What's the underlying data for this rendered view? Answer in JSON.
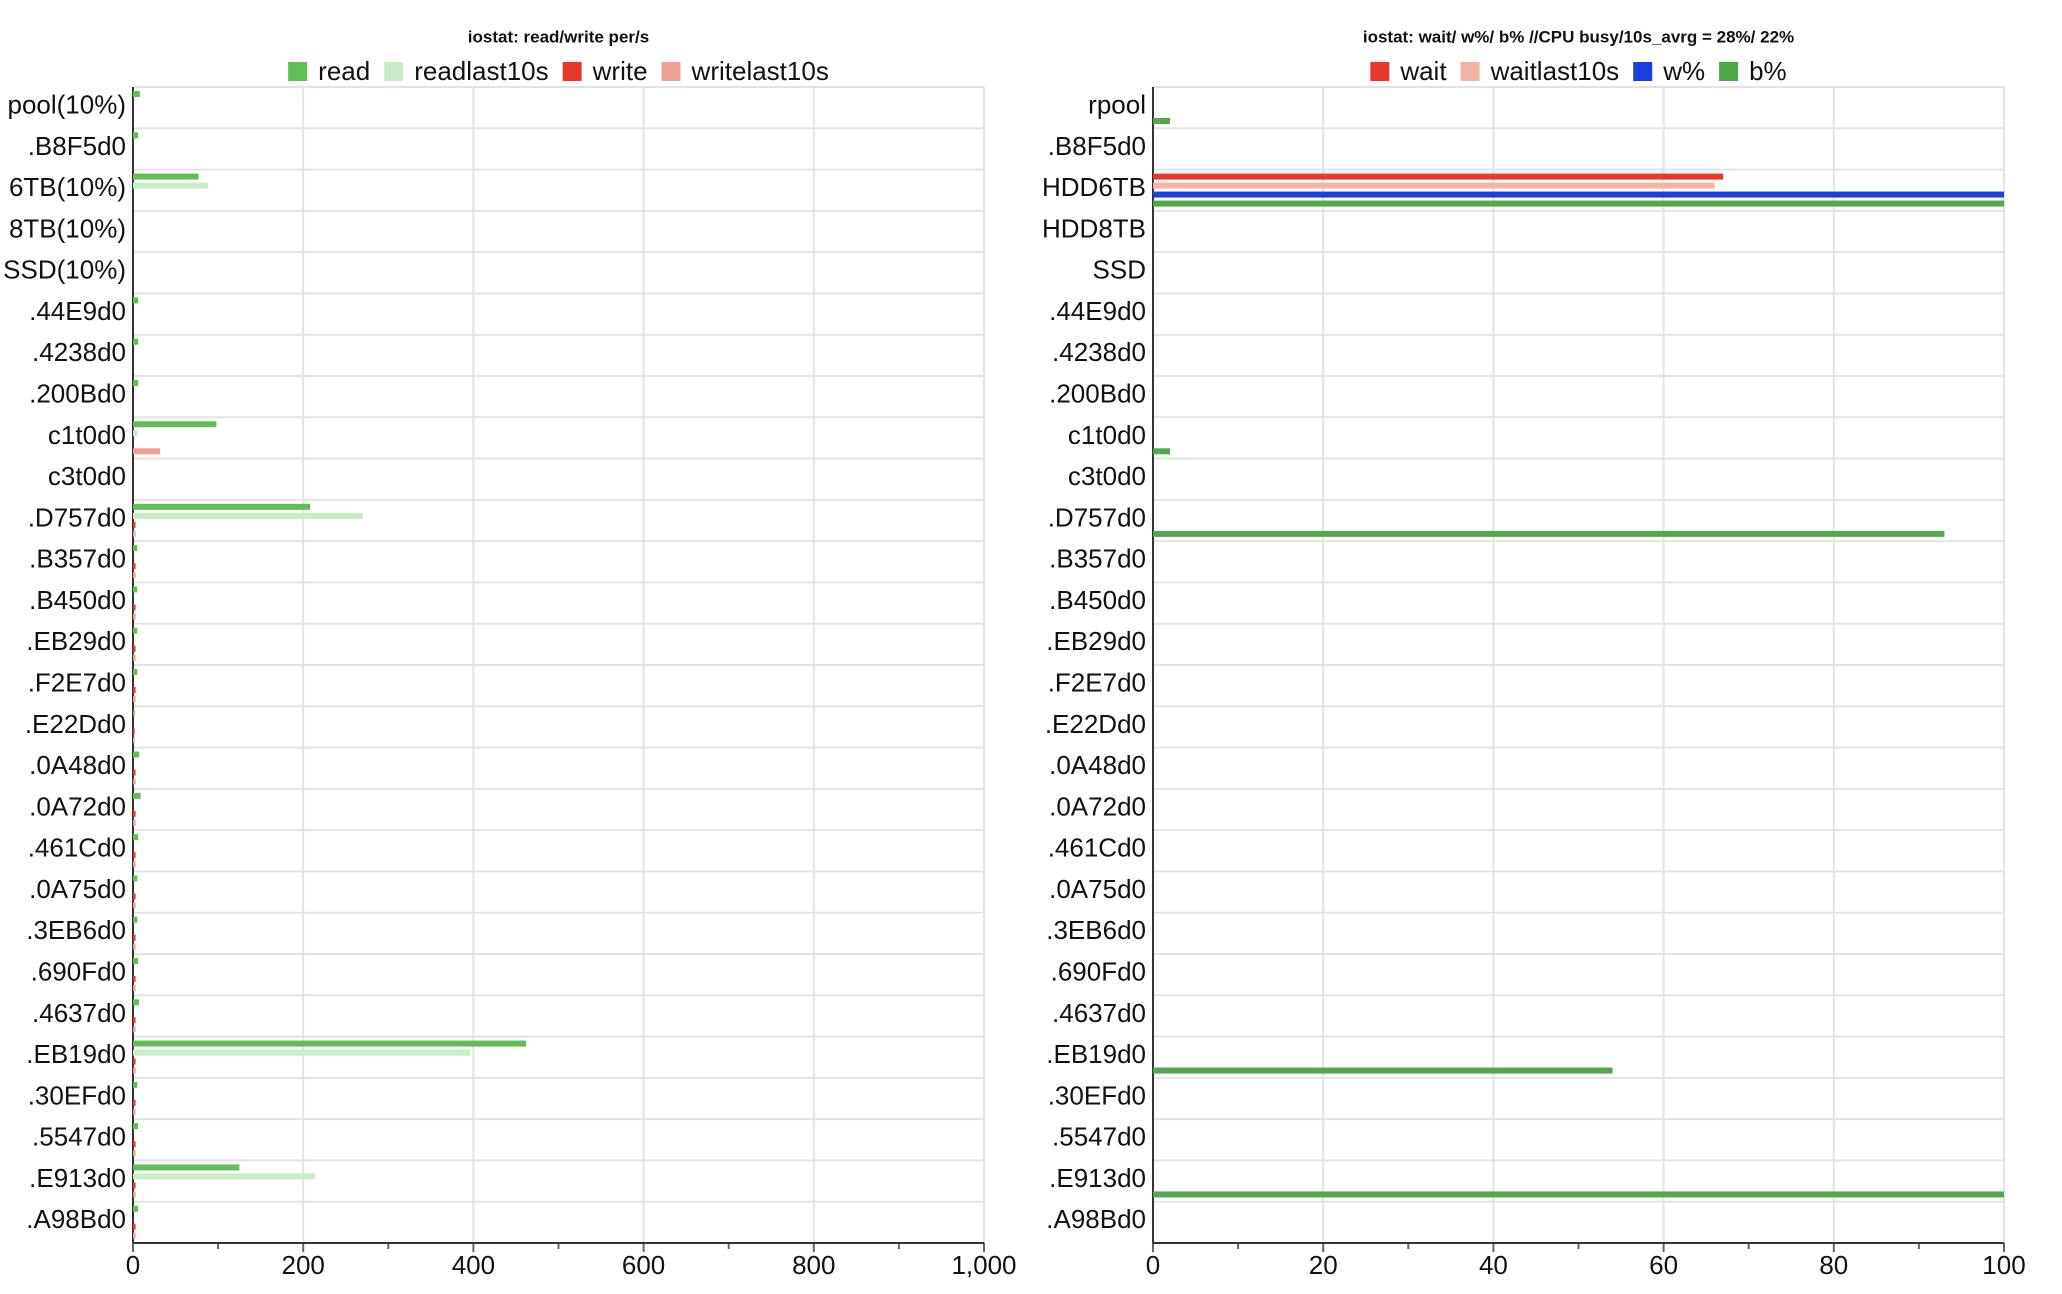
{
  "chart_data": [
    {
      "type": "bar",
      "title": "iostat: read/write per/s",
      "categories": [
        "pool(10%)",
        ".B8F5d0",
        "6TB(10%)",
        "8TB(10%)",
        "SSD(10%)",
        ".44E9d0",
        ".4238d0",
        ".200Bd0",
        "c1t0d0",
        "c3t0d0",
        ".D757d0",
        ".B357d0",
        ".B450d0",
        ".EB29d0",
        ".F2E7d0",
        ".E22Dd0",
        ".0A48d0",
        ".0A72d0",
        ".461Cd0",
        ".0A75d0",
        ".3EB6d0",
        ".690Fd0",
        ".4637d0",
        ".EB19d0",
        ".30EFd0",
        ".5547d0",
        ".E913d0",
        ".A98Bd0"
      ],
      "series": [
        {
          "name": "read",
          "color": "#5fbf55",
          "values": [
            8,
            6,
            77,
            0,
            0,
            6,
            6,
            6,
            98,
            0,
            208,
            5,
            5,
            5,
            5,
            2,
            7,
            9,
            6,
            5,
            5,
            6,
            7,
            462,
            5,
            6,
            125,
            6
          ]
        },
        {
          "name": "readlast10s",
          "color": "#c8ecc3",
          "values": [
            0,
            0,
            88,
            0,
            0,
            0,
            0,
            0,
            5,
            0,
            270,
            0,
            0,
            0,
            0,
            0,
            0,
            0,
            0,
            0,
            0,
            0,
            0,
            396,
            0,
            0,
            214,
            0
          ]
        },
        {
          "name": "write",
          "color": "#e8382a",
          "values": [
            0,
            0,
            0,
            0,
            0,
            0,
            0,
            0,
            0,
            0,
            3,
            3,
            3,
            3,
            3,
            2,
            3,
            3,
            3,
            3,
            3,
            3,
            3,
            3,
            3,
            3,
            3,
            3
          ]
        },
        {
          "name": "writelast10s",
          "color": "#eea193",
          "values": [
            0,
            0,
            0,
            0,
            0,
            0,
            0,
            0,
            32,
            0,
            3,
            3,
            3,
            3,
            3,
            2,
            3,
            3,
            3,
            3,
            3,
            3,
            3,
            3,
            3,
            3,
            3,
            3
          ]
        }
      ],
      "xlim": [
        0,
        1000
      ],
      "xticks": [
        0,
        200,
        400,
        600,
        800,
        {
          "value": 1000,
          "label": "1,000"
        }
      ],
      "grid": true
    },
    {
      "type": "bar",
      "title": "iostat: wait/ w%/ b% //CPU busy/10s_avrg = 28%/ 22%",
      "categories": [
        "rpool",
        ".B8F5d0",
        "HDD6TB",
        "HDD8TB",
        "SSD",
        ".44E9d0",
        ".4238d0",
        ".200Bd0",
        "c1t0d0",
        "c3t0d0",
        ".D757d0",
        ".B357d0",
        ".B450d0",
        ".EB29d0",
        ".F2E7d0",
        ".E22Dd0",
        ".0A48d0",
        ".0A72d0",
        ".461Cd0",
        ".0A75d0",
        ".3EB6d0",
        ".690Fd0",
        ".4637d0",
        ".EB19d0",
        ".30EFd0",
        ".5547d0",
        ".E913d0",
        ".A98Bd0"
      ],
      "series": [
        {
          "name": "wait",
          "color": "#e8382a",
          "values": [
            0,
            0,
            67,
            0,
            0,
            0,
            0,
            0,
            0,
            0,
            0,
            0,
            0,
            0,
            0,
            0,
            0,
            0,
            0,
            0,
            0,
            0,
            0,
            0,
            0,
            0,
            0,
            0
          ]
        },
        {
          "name": "waitlast10s",
          "color": "#f2b3a3",
          "values": [
            0,
            0,
            66,
            0,
            0,
            0,
            0,
            0,
            0,
            0,
            0,
            0,
            0,
            0,
            0,
            0,
            0,
            0,
            0,
            0,
            0,
            0,
            0,
            0,
            0,
            0,
            0,
            0
          ]
        },
        {
          "name": "w%",
          "color": "#1a3ee0",
          "values": [
            0,
            0,
            100,
            0,
            0,
            0,
            0,
            0,
            0,
            0,
            0,
            0,
            0,
            0,
            0,
            0,
            0,
            0,
            0,
            0,
            0,
            0,
            0,
            0,
            0,
            0,
            0,
            0
          ]
        },
        {
          "name": "b%",
          "color": "#4fa94a",
          "values": [
            2,
            0,
            100,
            0,
            0,
            0,
            0,
            0,
            2,
            0,
            93,
            0,
            0,
            0,
            0,
            0,
            0,
            0,
            0,
            0,
            0,
            0,
            0,
            54,
            0,
            0,
            100,
            0
          ]
        }
      ],
      "xlim": [
        0,
        100
      ],
      "xticks": [
        0,
        20,
        40,
        60,
        80,
        100
      ],
      "grid": true
    }
  ]
}
